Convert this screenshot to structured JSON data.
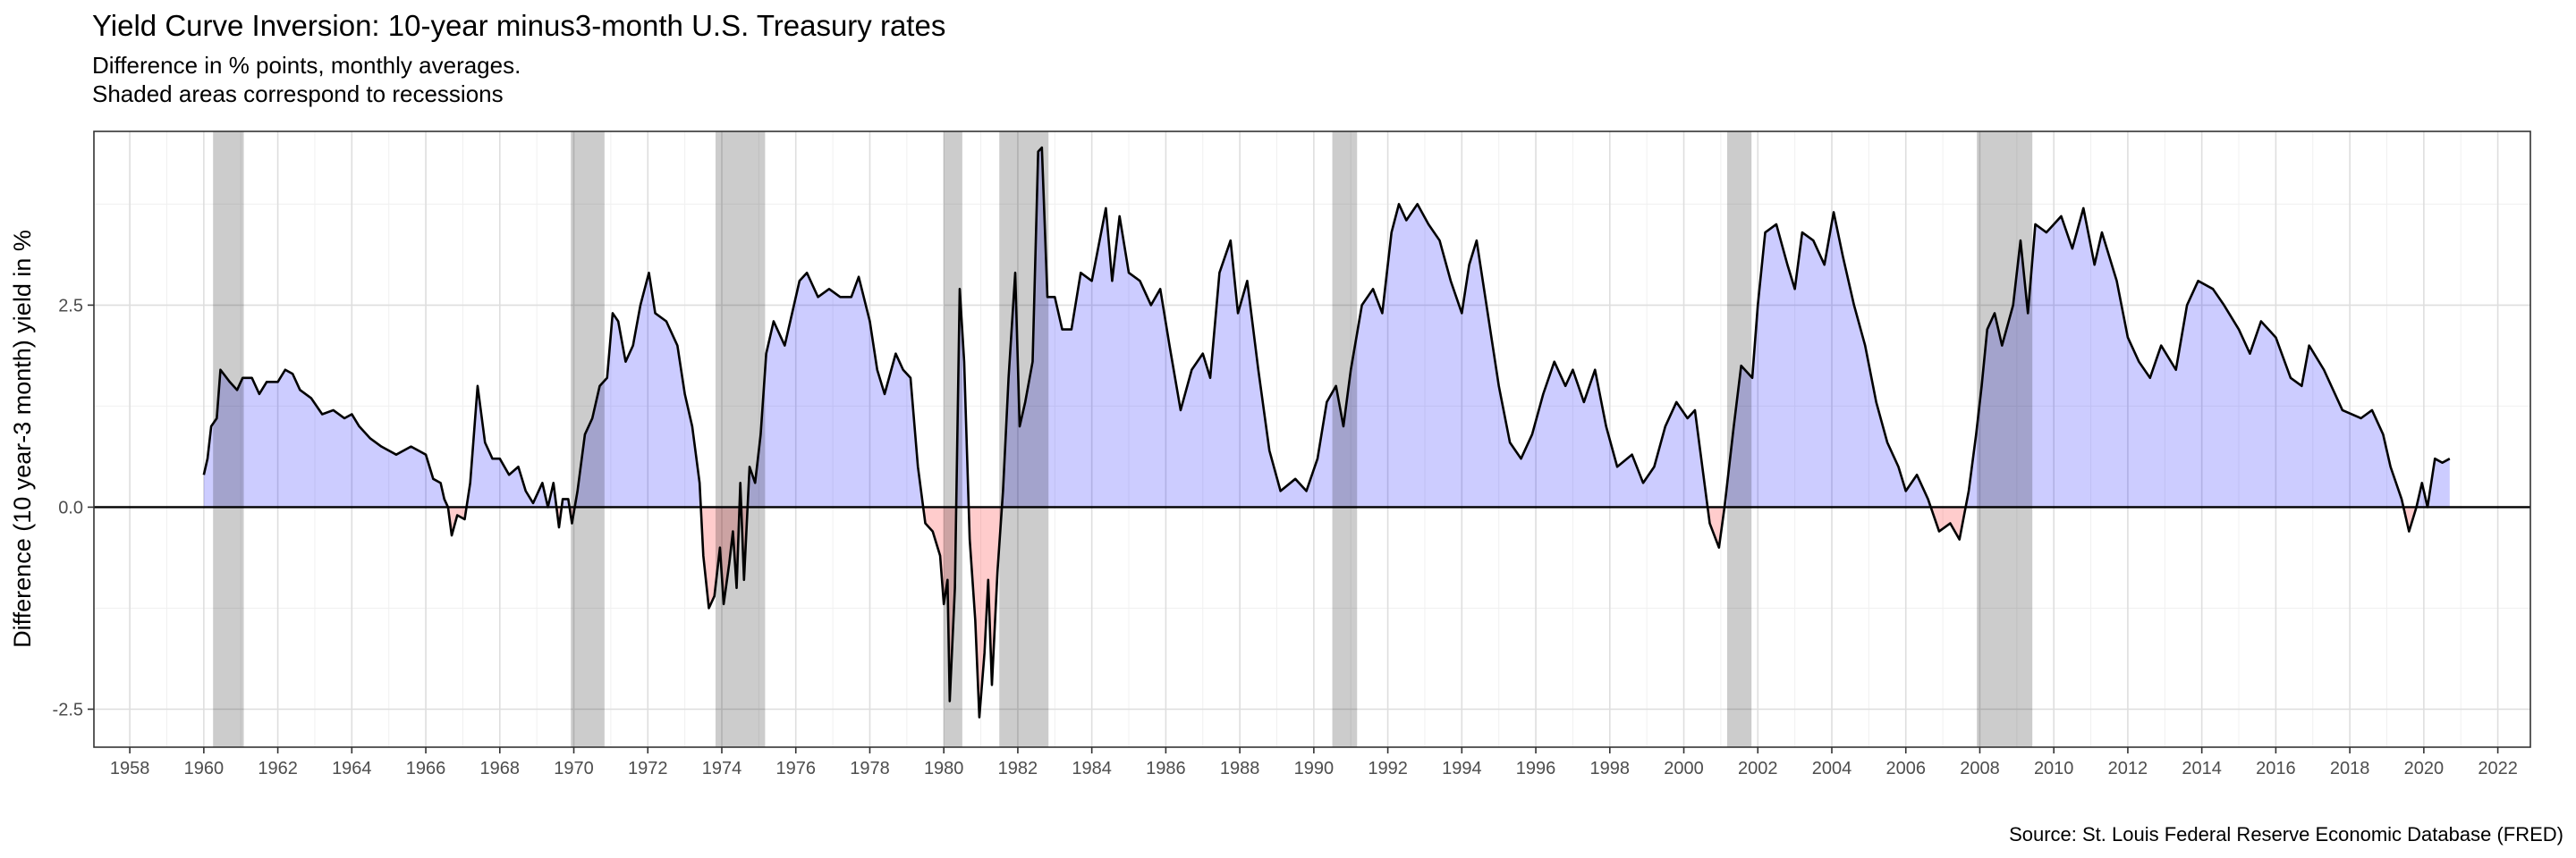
{
  "chart_data": {
    "type": "area",
    "title": "Yield Curve Inversion: 10-year minus3-month U.S. Treasury rates",
    "subtitle": [
      "Difference in % points, monthly averages.",
      "Shaded areas correspond to recessions"
    ],
    "ylabel": "Difference (10 year-3 month) yield in %",
    "caption": "Source: St. Louis Federal Reserve Economic Database (FRED)",
    "line_color": "#000000",
    "above_color": "#0000ff",
    "below_color": "#ff0000",
    "recession_color": "#000000",
    "grid": true,
    "xlim": [
      1957.03,
      2022.88
    ],
    "xticks": [
      1958,
      1960,
      1962,
      1964,
      1966,
      1968,
      1970,
      1972,
      1974,
      1976,
      1978,
      1980,
      1982,
      1984,
      1986,
      1988,
      1990,
      1992,
      1994,
      1996,
      1998,
      2000,
      2002,
      2004,
      2006,
      2008,
      2010,
      2012,
      2014,
      2016,
      2018,
      2020,
      2022
    ],
    "x_minor_ticks": [
      1959,
      1961,
      1963,
      1965,
      1967,
      1969,
      1971,
      1973,
      1975,
      1977,
      1979,
      1981,
      1983,
      1985,
      1987,
      1989,
      1991,
      1993,
      1995,
      1997,
      1999,
      2001,
      2003,
      2005,
      2007,
      2009,
      2011,
      2013,
      2015,
      2017,
      2019,
      2021
    ],
    "ylim": [
      -2.97,
      4.65
    ],
    "yticks": [
      -2.5,
      {
        "value": 0,
        "label": "0.0"
      },
      2.5
    ],
    "y_minor_ticks": [
      -1.25,
      1.25,
      3.75
    ],
    "recessions": [
      [
        1960.25,
        1961.08
      ],
      [
        1969.92,
        1970.83
      ],
      [
        1973.83,
        1975.17
      ],
      [
        1980.0,
        1980.5
      ],
      [
        1981.5,
        1982.83
      ],
      [
        1990.5,
        1991.17
      ],
      [
        2001.17,
        2001.83
      ],
      [
        2007.92,
        2009.42
      ]
    ],
    "x": [
      1960.0,
      1960.1,
      1960.2,
      1960.35,
      1960.45,
      1960.7,
      1960.9,
      1961.05,
      1961.3,
      1961.5,
      1961.7,
      1962.0,
      1962.2,
      1962.4,
      1962.6,
      1962.9,
      1963.2,
      1963.5,
      1963.8,
      1964.0,
      1964.2,
      1964.5,
      1964.8,
      1965.2,
      1965.6,
      1966.0,
      1966.2,
      1966.4,
      1966.5,
      1966.6,
      1966.7,
      1966.85,
      1967.05,
      1967.2,
      1967.4,
      1967.6,
      1967.8,
      1968.0,
      1968.25,
      1968.5,
      1968.7,
      1968.9,
      1969.15,
      1969.3,
      1969.45,
      1969.6,
      1969.7,
      1969.85,
      1969.95,
      1970.1,
      1970.3,
      1970.5,
      1970.7,
      1970.9,
      1971.05,
      1971.2,
      1971.4,
      1971.6,
      1971.8,
      1972.03,
      1972.2,
      1972.5,
      1972.8,
      1973.0,
      1973.2,
      1973.4,
      1973.5,
      1973.65,
      1973.8,
      1973.95,
      1974.05,
      1974.2,
      1974.3,
      1974.4,
      1974.5,
      1974.6,
      1974.75,
      1974.9,
      1975.05,
      1975.2,
      1975.4,
      1975.7,
      1975.9,
      1976.1,
      1976.3,
      1976.6,
      1976.9,
      1977.2,
      1977.5,
      1977.7,
      1978.0,
      1978.2,
      1978.4,
      1978.7,
      1978.9,
      1979.1,
      1979.3,
      1979.5,
      1979.7,
      1979.9,
      1980.0,
      1980.1,
      1980.16,
      1980.3,
      1980.43,
      1980.55,
      1980.7,
      1980.85,
      1980.96,
      1981.1,
      1981.2,
      1981.3,
      1981.45,
      1981.6,
      1981.75,
      1981.93,
      1982.05,
      1982.2,
      1982.4,
      1982.55,
      1982.65,
      1982.8,
      1983.0,
      1983.2,
      1983.45,
      1983.7,
      1984.0,
      1984.38,
      1984.55,
      1984.75,
      1985.0,
      1985.3,
      1985.6,
      1985.85,
      1986.1,
      1986.4,
      1986.7,
      1987.0,
      1987.2,
      1987.45,
      1987.75,
      1987.95,
      1988.2,
      1988.5,
      1988.8,
      1989.1,
      1989.5,
      1989.8,
      1990.1,
      1990.35,
      1990.6,
      1990.8,
      1991.0,
      1991.3,
      1991.6,
      1991.85,
      1992.1,
      1992.3,
      1992.5,
      1992.8,
      1993.1,
      1993.4,
      1993.7,
      1994.0,
      1994.2,
      1994.4,
      1994.7,
      1995.0,
      1995.3,
      1995.6,
      1995.9,
      1996.2,
      1996.5,
      1996.8,
      1997.0,
      1997.3,
      1997.6,
      1997.9,
      1998.2,
      1998.6,
      1998.9,
      1999.2,
      1999.5,
      1999.8,
      2000.1,
      2000.3,
      2000.5,
      2000.7,
      2000.95,
      2001.1,
      2001.35,
      2001.55,
      2001.85,
      2002.0,
      2002.2,
      2002.5,
      2002.8,
      2003.0,
      2003.2,
      2003.5,
      2003.8,
      2004.05,
      2004.3,
      2004.6,
      2004.9,
      2005.2,
      2005.5,
      2005.8,
      2006.0,
      2006.3,
      2006.6,
      2006.9,
      2007.2,
      2007.45,
      2007.7,
      2007.9,
      2008.05,
      2008.2,
      2008.4,
      2008.6,
      2008.9,
      2009.1,
      2009.3,
      2009.5,
      2009.8,
      2010.2,
      2010.5,
      2010.8,
      2011.1,
      2011.3,
      2011.7,
      2012.0,
      2012.3,
      2012.6,
      2012.9,
      2013.3,
      2013.6,
      2013.9,
      2014.3,
      2014.6,
      2015.0,
      2015.3,
      2015.6,
      2016.0,
      2016.4,
      2016.7,
      2016.9,
      2017.3,
      2017.8,
      2018.3,
      2018.6,
      2018.9,
      2019.1,
      2019.4,
      2019.6,
      2019.8,
      2019.95,
      2020.1,
      2020.3,
      2020.5,
      2020.7
    ],
    "values": [
      0.4,
      0.6,
      1.0,
      1.1,
      1.7,
      1.55,
      1.45,
      1.6,
      1.6,
      1.4,
      1.55,
      1.55,
      1.7,
      1.65,
      1.45,
      1.35,
      1.15,
      1.2,
      1.1,
      1.15,
      1.0,
      0.85,
      0.75,
      0.65,
      0.75,
      0.65,
      0.35,
      0.3,
      0.1,
      0.0,
      -0.35,
      -0.1,
      -0.15,
      0.3,
      1.5,
      0.8,
      0.6,
      0.6,
      0.4,
      0.5,
      0.2,
      0.05,
      0.3,
      0.0,
      0.3,
      -0.25,
      0.1,
      0.1,
      -0.2,
      0.2,
      0.9,
      1.1,
      1.5,
      1.6,
      2.4,
      2.3,
      1.8,
      2.0,
      2.5,
      2.9,
      2.4,
      2.3,
      2.0,
      1.4,
      1.0,
      0.3,
      -0.6,
      -1.25,
      -1.1,
      -0.5,
      -1.2,
      -0.7,
      -0.3,
      -1.0,
      0.3,
      -0.9,
      0.5,
      0.3,
      0.9,
      1.9,
      2.3,
      2.0,
      2.4,
      2.8,
      2.9,
      2.6,
      2.7,
      2.6,
      2.6,
      2.85,
      2.3,
      1.7,
      1.4,
      1.9,
      1.7,
      1.6,
      0.5,
      -0.2,
      -0.3,
      -0.6,
      -1.2,
      -0.9,
      -2.4,
      -1.0,
      2.7,
      1.8,
      -0.4,
      -1.4,
      -2.6,
      -1.8,
      -0.9,
      -2.2,
      -0.8,
      0.2,
      1.6,
      2.9,
      1.0,
      1.3,
      1.8,
      4.4,
      4.45,
      2.6,
      2.6,
      2.2,
      2.2,
      2.9,
      2.8,
      3.7,
      2.8,
      3.6,
      2.9,
      2.8,
      2.5,
      2.7,
      2.0,
      1.2,
      1.7,
      1.9,
      1.6,
      2.9,
      3.3,
      2.4,
      2.8,
      1.7,
      0.7,
      0.2,
      0.35,
      0.2,
      0.6,
      1.3,
      1.5,
      1.0,
      1.7,
      2.5,
      2.7,
      2.4,
      3.4,
      3.75,
      3.55,
      3.75,
      3.5,
      3.3,
      2.8,
      2.4,
      3.0,
      3.3,
      2.4,
      1.5,
      0.8,
      0.6,
      0.9,
      1.4,
      1.8,
      1.5,
      1.7,
      1.3,
      1.7,
      1.0,
      0.5,
      0.65,
      0.3,
      0.5,
      1.0,
      1.3,
      1.1,
      1.2,
      0.5,
      -0.2,
      -0.5,
      0.0,
      1.0,
      1.75,
      1.6,
      2.5,
      3.4,
      3.5,
      3.0,
      2.7,
      3.4,
      3.3,
      3.0,
      3.65,
      3.1,
      2.5,
      2.0,
      1.3,
      0.8,
      0.5,
      0.2,
      0.4,
      0.1,
      -0.3,
      -0.2,
      -0.4,
      0.2,
      0.9,
      1.5,
      2.2,
      2.4,
      2.0,
      2.5,
      3.3,
      2.4,
      3.5,
      3.4,
      3.6,
      3.2,
      3.7,
      3.0,
      3.4,
      2.8,
      2.1,
      1.8,
      1.6,
      2.0,
      1.7,
      2.5,
      2.8,
      2.7,
      2.5,
      2.2,
      1.9,
      2.3,
      2.1,
      1.6,
      1.5,
      2.0,
      1.7,
      1.2,
      1.1,
      1.2,
      0.9,
      0.5,
      0.1,
      -0.3,
      0.0,
      0.3,
      0.0,
      0.6,
      0.55,
      0.6
    ]
  }
}
